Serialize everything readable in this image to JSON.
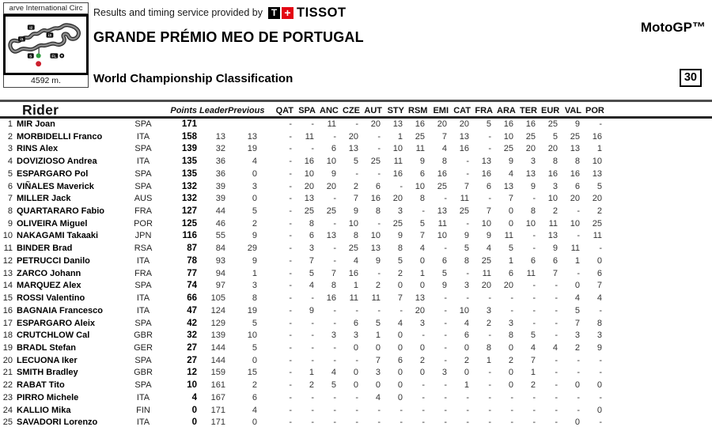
{
  "colors": {
    "tissot_red": "#e30613",
    "start_dot_green": "#2e9e3f",
    "finish_dot_red": "#cc1f2d",
    "track_gray": "#6e6e6e"
  },
  "header": {
    "provided_by": "Results and timing service provided by",
    "tissot": {
      "t": "T",
      "plus": "+",
      "name": "TISSOT"
    },
    "event_title": "GRANDE PRÉMIO MEO DE PORTUGAL",
    "class_label": "MotoGP™",
    "subtitle": "World Championship Classification",
    "race_number": "30",
    "track": {
      "circuit_label": "arve International Circ",
      "length": "4592 m.",
      "marker_i1": "i1",
      "marker_i2": "i2",
      "marker_i3": "i3",
      "marker_s": "S",
      "marker_fl": "FL"
    }
  },
  "table": {
    "rider_header": "Rider",
    "stat_headers": [
      "Points",
      "Leader",
      "Previous"
    ],
    "race_headers": [
      "QAT",
      "SPA",
      "ANC",
      "CZE",
      "AUT",
      "STY",
      "RSM",
      "EMI",
      "CAT",
      "FRA",
      "ARA",
      "TER",
      "EUR",
      "VAL",
      "POR"
    ],
    "rows": [
      {
        "pos": "1",
        "name": "MIR Joan",
        "nat": "SPA",
        "points": "171",
        "leader": "",
        "previous": "",
        "races": [
          "-",
          "-",
          "11",
          "-",
          "20",
          "13",
          "16",
          "20",
          "20",
          "5",
          "16",
          "16",
          "25",
          "9",
          "-"
        ]
      },
      {
        "pos": "2",
        "name": "MORBIDELLI Franco",
        "nat": "ITA",
        "points": "158",
        "leader": "13",
        "previous": "13",
        "races": [
          "-",
          "11",
          "-",
          "20",
          "-",
          "1",
          "25",
          "7",
          "13",
          "-",
          "10",
          "25",
          "5",
          "25",
          "16"
        ]
      },
      {
        "pos": "3",
        "name": "RINS Alex",
        "nat": "SPA",
        "points": "139",
        "leader": "32",
        "previous": "19",
        "races": [
          "-",
          "-",
          "6",
          "13",
          "-",
          "10",
          "11",
          "4",
          "16",
          "-",
          "25",
          "20",
          "20",
          "13",
          "1"
        ]
      },
      {
        "pos": "4",
        "name": "DOVIZIOSO Andrea",
        "nat": "ITA",
        "points": "135",
        "leader": "36",
        "previous": "4",
        "races": [
          "-",
          "16",
          "10",
          "5",
          "25",
          "11",
          "9",
          "8",
          "-",
          "13",
          "9",
          "3",
          "8",
          "8",
          "10"
        ]
      },
      {
        "pos": "5",
        "name": "ESPARGARO Pol",
        "nat": "SPA",
        "points": "135",
        "leader": "36",
        "previous": "0",
        "races": [
          "-",
          "10",
          "9",
          "-",
          "-",
          "16",
          "6",
          "16",
          "-",
          "16",
          "4",
          "13",
          "16",
          "16",
          "13"
        ]
      },
      {
        "pos": "6",
        "name": "VIÑALES Maverick",
        "nat": "SPA",
        "points": "132",
        "leader": "39",
        "previous": "3",
        "races": [
          "-",
          "20",
          "20",
          "2",
          "6",
          "-",
          "10",
          "25",
          "7",
          "6",
          "13",
          "9",
          "3",
          "6",
          "5"
        ]
      },
      {
        "pos": "7",
        "name": "MILLER Jack",
        "nat": "AUS",
        "points": "132",
        "leader": "39",
        "previous": "0",
        "races": [
          "-",
          "13",
          "-",
          "7",
          "16",
          "20",
          "8",
          "-",
          "11",
          "-",
          "7",
          "-",
          "10",
          "20",
          "20"
        ]
      },
      {
        "pos": "8",
        "name": "QUARTARARO Fabio",
        "nat": "FRA",
        "points": "127",
        "leader": "44",
        "previous": "5",
        "races": [
          "-",
          "25",
          "25",
          "9",
          "8",
          "3",
          "-",
          "13",
          "25",
          "7",
          "0",
          "8",
          "2",
          "-",
          "2"
        ]
      },
      {
        "pos": "9",
        "name": "OLIVEIRA Miguel",
        "nat": "POR",
        "points": "125",
        "leader": "46",
        "previous": "2",
        "races": [
          "-",
          "8",
          "-",
          "10",
          "-",
          "25",
          "5",
          "11",
          "-",
          "10",
          "0",
          "10",
          "11",
          "10",
          "25"
        ]
      },
      {
        "pos": "10",
        "name": "NAKAGAMI Takaaki",
        "nat": "JPN",
        "points": "116",
        "leader": "55",
        "previous": "9",
        "races": [
          "-",
          "6",
          "13",
          "8",
          "10",
          "9",
          "7",
          "10",
          "9",
          "9",
          "11",
          "-",
          "13",
          "-",
          "11"
        ]
      },
      {
        "pos": "11",
        "name": "BINDER Brad",
        "nat": "RSA",
        "points": "87",
        "leader": "84",
        "previous": "29",
        "races": [
          "-",
          "3",
          "-",
          "25",
          "13",
          "8",
          "4",
          "-",
          "5",
          "4",
          "5",
          "-",
          "9",
          "11",
          "-"
        ]
      },
      {
        "pos": "12",
        "name": "PETRUCCI Danilo",
        "nat": "ITA",
        "points": "78",
        "leader": "93",
        "previous": "9",
        "races": [
          "-",
          "7",
          "-",
          "4",
          "9",
          "5",
          "0",
          "6",
          "8",
          "25",
          "1",
          "6",
          "6",
          "1",
          "0"
        ]
      },
      {
        "pos": "13",
        "name": "ZARCO Johann",
        "nat": "FRA",
        "points": "77",
        "leader": "94",
        "previous": "1",
        "races": [
          "-",
          "5",
          "7",
          "16",
          "-",
          "2",
          "1",
          "5",
          "-",
          "11",
          "6",
          "11",
          "7",
          "-",
          "6"
        ]
      },
      {
        "pos": "14",
        "name": "MARQUEZ Alex",
        "nat": "SPA",
        "points": "74",
        "leader": "97",
        "previous": "3",
        "races": [
          "-",
          "4",
          "8",
          "1",
          "2",
          "0",
          "0",
          "9",
          "3",
          "20",
          "20",
          "-",
          "-",
          "0",
          "7"
        ]
      },
      {
        "pos": "15",
        "name": "ROSSI Valentino",
        "nat": "ITA",
        "points": "66",
        "leader": "105",
        "previous": "8",
        "races": [
          "-",
          "-",
          "16",
          "11",
          "11",
          "7",
          "13",
          "-",
          "-",
          "-",
          "-",
          "-",
          "-",
          "4",
          "4"
        ]
      },
      {
        "pos": "16",
        "name": "BAGNAIA Francesco",
        "nat": "ITA",
        "points": "47",
        "leader": "124",
        "previous": "19",
        "races": [
          "-",
          "9",
          "-",
          "-",
          "-",
          "-",
          "20",
          "-",
          "10",
          "3",
          "-",
          "-",
          "-",
          "5",
          "-"
        ]
      },
      {
        "pos": "17",
        "name": "ESPARGARO Aleix",
        "nat": "SPA",
        "points": "42",
        "leader": "129",
        "previous": "5",
        "races": [
          "-",
          "-",
          "-",
          "6",
          "5",
          "4",
          "3",
          "-",
          "4",
          "2",
          "3",
          "-",
          "-",
          "7",
          "8"
        ]
      },
      {
        "pos": "18",
        "name": "CRUTCHLOW Cal",
        "nat": "GBR",
        "points": "32",
        "leader": "139",
        "previous": "10",
        "races": [
          "-",
          "-",
          "3",
          "3",
          "1",
          "0",
          "-",
          "-",
          "6",
          "-",
          "8",
          "5",
          "-",
          "3",
          "3"
        ]
      },
      {
        "pos": "19",
        "name": "BRADL Stefan",
        "nat": "GER",
        "points": "27",
        "leader": "144",
        "previous": "5",
        "races": [
          "-",
          "-",
          "-",
          "0",
          "0",
          "0",
          "0",
          "-",
          "0",
          "8",
          "0",
          "4",
          "4",
          "2",
          "9"
        ]
      },
      {
        "pos": "20",
        "name": "LECUONA Iker",
        "nat": "SPA",
        "points": "27",
        "leader": "144",
        "previous": "0",
        "races": [
          "-",
          "-",
          "-",
          "-",
          "7",
          "6",
          "2",
          "-",
          "2",
          "1",
          "2",
          "7",
          "-",
          "-",
          "-"
        ]
      },
      {
        "pos": "21",
        "name": "SMITH Bradley",
        "nat": "GBR",
        "points": "12",
        "leader": "159",
        "previous": "15",
        "races": [
          "-",
          "1",
          "4",
          "0",
          "3",
          "0",
          "0",
          "3",
          "0",
          "-",
          "0",
          "1",
          "-",
          "-",
          "-"
        ]
      },
      {
        "pos": "22",
        "name": "RABAT Tito",
        "nat": "SPA",
        "points": "10",
        "leader": "161",
        "previous": "2",
        "races": [
          "-",
          "2",
          "5",
          "0",
          "0",
          "0",
          "-",
          "-",
          "1",
          "-",
          "0",
          "2",
          "-",
          "0",
          "0"
        ]
      },
      {
        "pos": "23",
        "name": "PIRRO Michele",
        "nat": "ITA",
        "points": "4",
        "leader": "167",
        "previous": "6",
        "races": [
          "-",
          "-",
          "-",
          "-",
          "4",
          "0",
          "-",
          "-",
          "-",
          "-",
          "-",
          "-",
          "-",
          "-",
          "-"
        ]
      },
      {
        "pos": "24",
        "name": "KALLIO Mika",
        "nat": "FIN",
        "points": "0",
        "leader": "171",
        "previous": "4",
        "races": [
          "-",
          "-",
          "-",
          "-",
          "-",
          "-",
          "-",
          "-",
          "-",
          "-",
          "-",
          "-",
          "-",
          "-",
          "0"
        ]
      },
      {
        "pos": "25",
        "name": "SAVADORI Lorenzo",
        "nat": "ITA",
        "points": "0",
        "leader": "171",
        "previous": "0",
        "races": [
          "-",
          "-",
          "-",
          "-",
          "-",
          "-",
          "-",
          "-",
          "-",
          "-",
          "-",
          "-",
          "-",
          "0",
          "-"
        ]
      }
    ]
  }
}
